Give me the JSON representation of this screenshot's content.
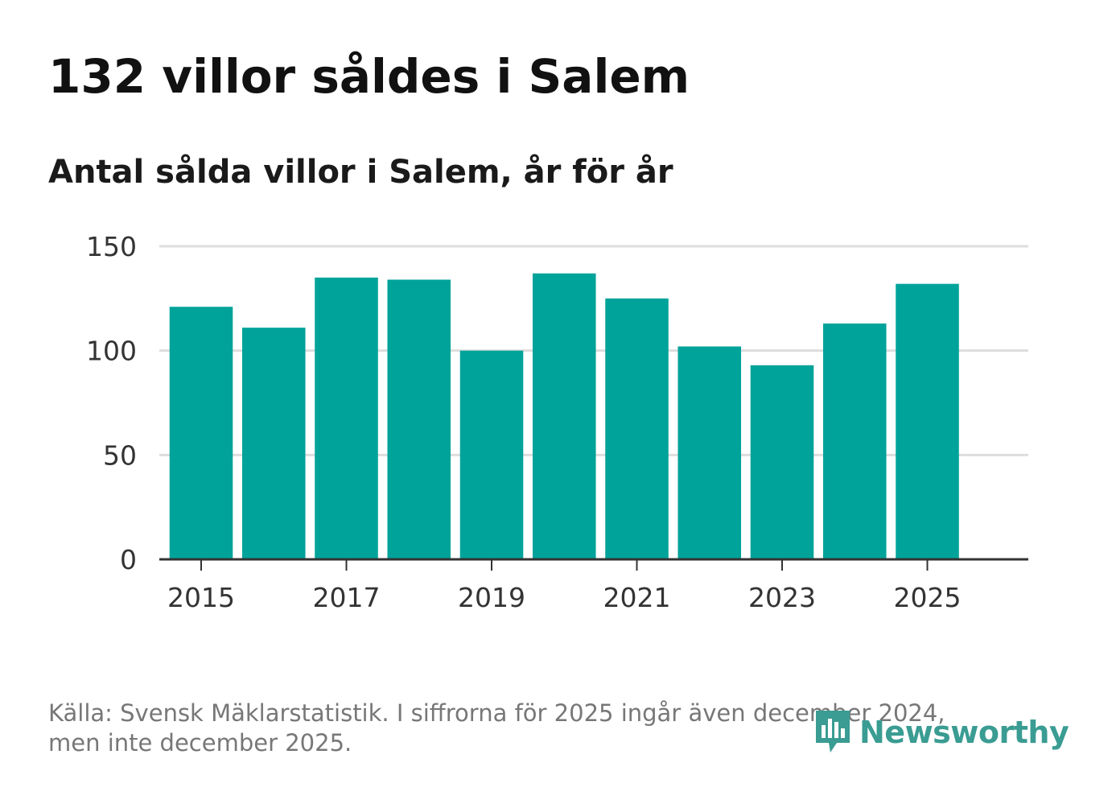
{
  "title": "132 villor såldes i Salem",
  "subtitle": "Antal sålda villor i Salem, år för år",
  "footer": {
    "line1": "Källa: Svensk Mäklarstatistik. I siffrorna för 2025 ingår även december 2024,",
    "line2": "men inte december 2025."
  },
  "brand": {
    "name": "Newsworthy",
    "icon": "newsworthy-logo-icon",
    "color": "#3a9c92"
  },
  "colors": {
    "bar": "#00a39a",
    "grid": "#dddddd",
    "axis": "#333333"
  },
  "chart_data": {
    "type": "bar",
    "title": "Antal sålda villor i Salem, år för år",
    "xlabel": "",
    "ylabel": "",
    "categories": [
      "2015",
      "2016",
      "2017",
      "2018",
      "2019",
      "2020",
      "2021",
      "2022",
      "2023",
      "2024",
      "2025"
    ],
    "values": [
      121,
      111,
      135,
      134,
      100,
      137,
      125,
      102,
      93,
      113,
      132
    ],
    "ylim": [
      0,
      150
    ],
    "yticks": [
      0,
      50,
      100,
      150
    ],
    "xticks": [
      "2015",
      "2017",
      "2019",
      "2021",
      "2023",
      "2025"
    ],
    "grid": true,
    "legend": "none"
  }
}
